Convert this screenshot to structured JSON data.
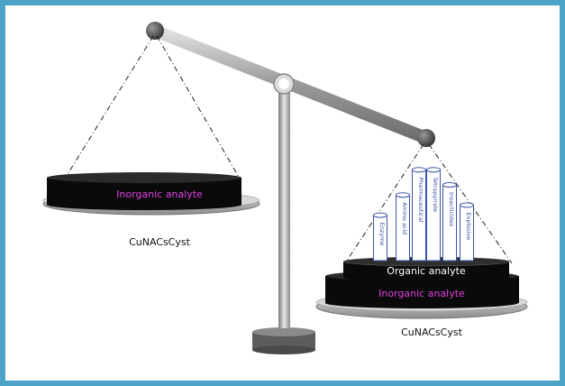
{
  "diagram": {
    "left_pan": {
      "analyte_label": "Inorganic analyte",
      "caption": "CuNACsCyst"
    },
    "right_pan": {
      "top_layer_label": "Organic analyte",
      "bottom_layer_label": "Inorganic analyte",
      "caption": "CuNACsCyst",
      "tubes": [
        {
          "label": "Enzyme",
          "level": 0.45
        },
        {
          "label": "Amino acid",
          "level": 0.65
        },
        {
          "label": "Pharmaceutical",
          "level": 0.9
        },
        {
          "label": "Tetrapyrrole",
          "level": 0.9
        },
        {
          "label": "Insecticides",
          "level": 0.75
        },
        {
          "label": "Explosive",
          "level": 0.55
        }
      ]
    },
    "colors": {
      "frame_border": "#4ba3c7",
      "disc_fill": "#0a0a0a",
      "plate_fill": "#b0b0b0",
      "inorganic_text": "#e040e0",
      "organic_text": "#ffffff",
      "tube_stroke": "#3a52a8"
    }
  }
}
